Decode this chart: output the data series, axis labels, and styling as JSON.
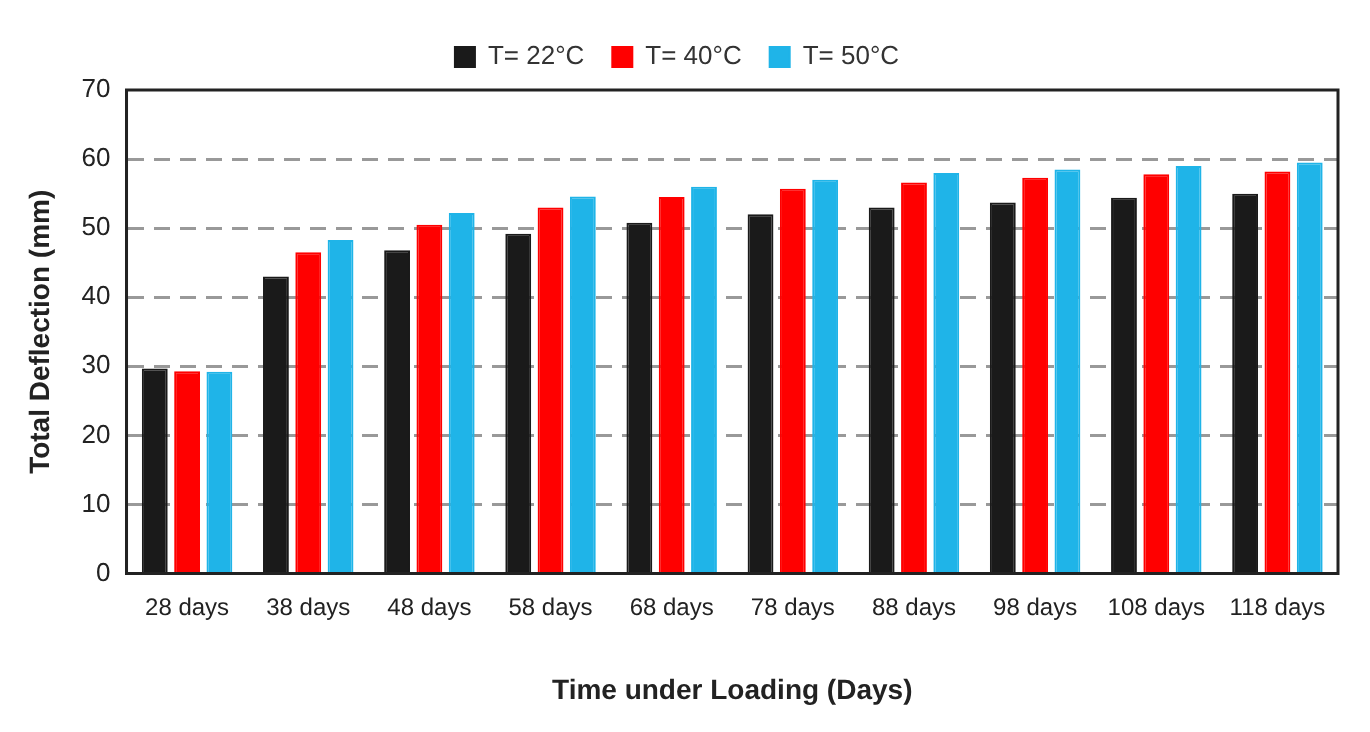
{
  "chart_data": {
    "type": "bar",
    "xlabel": "Time under Loading (Days)",
    "ylabel": "Total Deflection (mm)",
    "categories": [
      "28 days",
      "38 days",
      "48 days",
      "58 days",
      "68 days",
      "78 days",
      "88 days",
      "98 days",
      "108 days",
      "118 days"
    ],
    "series": [
      {
        "name": "T= 22°C",
        "color": "#1a1a1a",
        "values": [
          29.7,
          43,
          46.8,
          49.2,
          50.8,
          52,
          53,
          53.7,
          54.4,
          55
        ]
      },
      {
        "name": "T= 40°C",
        "color": "#ff0000",
        "values": [
          29.3,
          46.5,
          50.5,
          53,
          54.5,
          55.7,
          56.6,
          57.3,
          57.8,
          58.2
        ]
      },
      {
        "name": "T= 50°C",
        "color": "#1fb4e8",
        "values": [
          29.2,
          48.3,
          52.2,
          54.6,
          56,
          57,
          58,
          58.5,
          59,
          59.5
        ]
      }
    ],
    "ylim": [
      0,
      70
    ],
    "yticks": [
      0,
      10,
      20,
      30,
      40,
      50,
      60,
      70
    ],
    "grid": "y",
    "legend": "top"
  }
}
